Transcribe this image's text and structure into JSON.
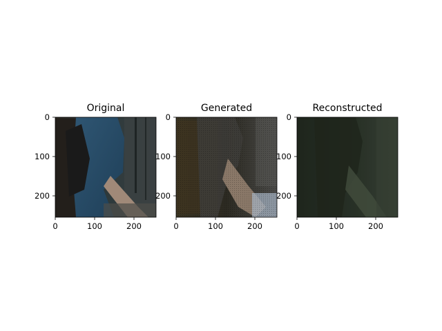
{
  "panels": [
    {
      "title": "Original",
      "x_ticks": [
        "0",
        "100",
        "200"
      ],
      "y_ticks": [
        "0",
        "100",
        "200"
      ]
    },
    {
      "title": "Generated",
      "x_ticks": [
        "0",
        "100",
        "200"
      ],
      "y_ticks": [
        "0",
        "100",
        "200"
      ]
    },
    {
      "title": "Reconstructed",
      "x_ticks": [
        "0",
        "100",
        "200"
      ],
      "y_ticks": [
        "0",
        "100",
        "200"
      ]
    }
  ]
}
